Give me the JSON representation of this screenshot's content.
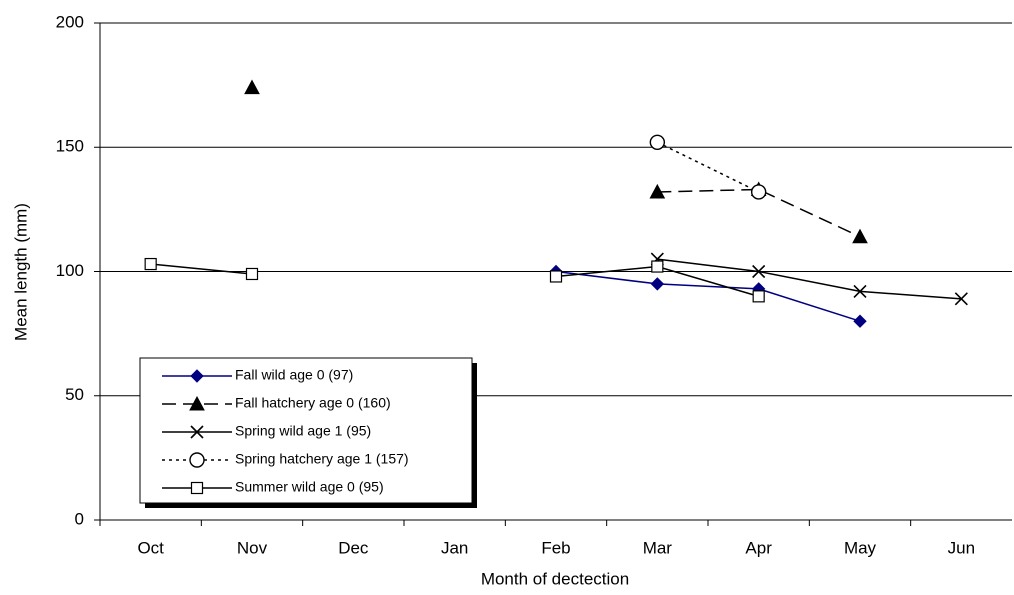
{
  "chart_data": {
    "type": "line",
    "x_label": "Month of dectection",
    "y_label": "Mean length (mm)",
    "categories": [
      "Oct",
      "Nov",
      "Dec",
      "Jan",
      "Feb",
      "Mar",
      "Apr",
      "May",
      "Jun"
    ],
    "ylim": [
      0,
      200
    ],
    "yticks": [
      0,
      50,
      100,
      150,
      200
    ],
    "grid": true,
    "legend": "lower-left",
    "series": [
      {
        "name": "Fall wild age 0 (97)",
        "color": "#000080",
        "dash": "solid",
        "marker": "diamond",
        "values": [
          null,
          null,
          null,
          null,
          100,
          95,
          93,
          80,
          null
        ]
      },
      {
        "name": "Fall hatchery age 0 (160)",
        "color": "#000000",
        "dash": "dashed",
        "marker": "triangle",
        "values": [
          null,
          174,
          null,
          null,
          null,
          132,
          133,
          114,
          null
        ]
      },
      {
        "name": "Spring wild age 1 (95)",
        "color": "#000000",
        "dash": "solid",
        "marker": "cross",
        "values": [
          null,
          null,
          null,
          null,
          null,
          105,
          100,
          92,
          89
        ]
      },
      {
        "name": "Spring hatchery age 1 (157)",
        "color": "#000000",
        "dash": "dotted",
        "marker": "circle",
        "values": [
          null,
          null,
          null,
          null,
          null,
          152,
          132,
          null,
          null
        ]
      },
      {
        "name": "Summer wild age 0 (95)",
        "color": "#000000",
        "dash": "solid",
        "marker": "square",
        "values": [
          103,
          99,
          null,
          null,
          98,
          102,
          90,
          null,
          null
        ]
      }
    ]
  }
}
